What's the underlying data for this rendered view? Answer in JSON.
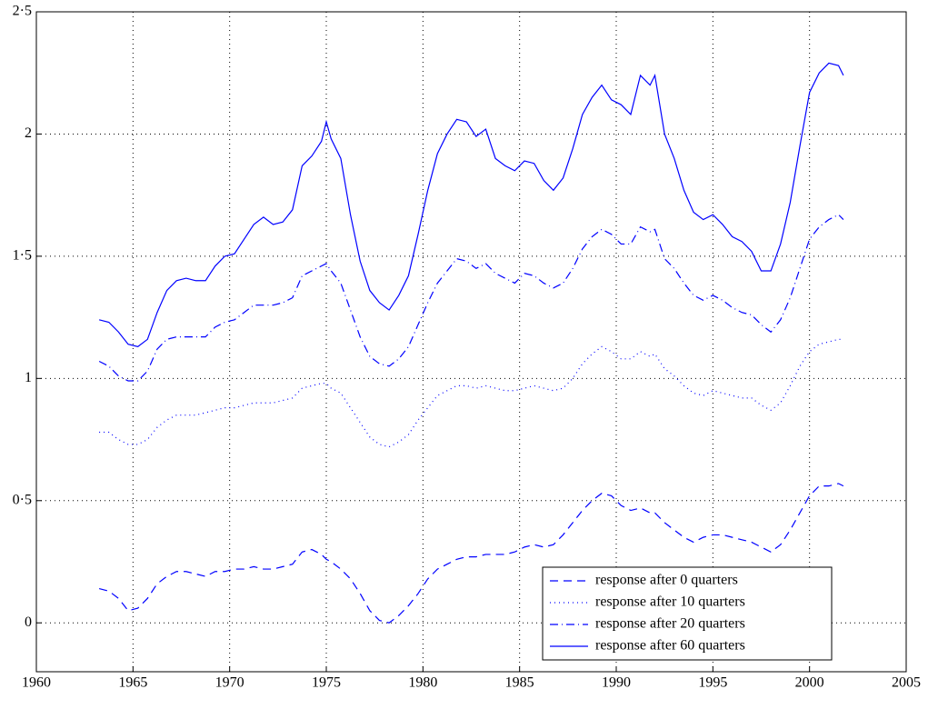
{
  "chart_data": {
    "type": "line",
    "x": [
      1963.25,
      1963.75,
      1964.25,
      1964.75,
      1965.25,
      1965.75,
      1966.25,
      1966.75,
      1967.25,
      1967.75,
      1968.25,
      1968.75,
      1969.25,
      1969.75,
      1970.25,
      1970.75,
      1971.25,
      1971.75,
      1972.25,
      1972.75,
      1973.25,
      1973.75,
      1974.25,
      1974.75,
      1975.0,
      1975.25,
      1975.75,
      1976.25,
      1976.75,
      1977.25,
      1977.75,
      1978.25,
      1978.75,
      1979.25,
      1979.75,
      1980.25,
      1980.75,
      1981.25,
      1981.75,
      1982.25,
      1982.75,
      1983.25,
      1983.75,
      1984.25,
      1984.75,
      1985.25,
      1985.75,
      1986.25,
      1986.75,
      1987.25,
      1987.75,
      1988.25,
      1988.75,
      1989.25,
      1989.75,
      1990.25,
      1990.75,
      1991.25,
      1991.75,
      1992.0,
      1992.5,
      1993.0,
      1993.5,
      1994.0,
      1994.5,
      1995.0,
      1995.5,
      1996.0,
      1996.5,
      1997.0,
      1997.5,
      1998.0,
      1998.5,
      1999.0,
      1999.5,
      2000.0,
      2000.5,
      2001.0,
      2001.5,
      2001.75
    ],
    "series": [
      {
        "name": "response after 0 quarters",
        "color": "#0000ff",
        "linestyle": "dashed",
        "values": [
          0.14,
          0.13,
          0.1,
          0.05,
          0.06,
          0.1,
          0.16,
          0.19,
          0.21,
          0.21,
          0.2,
          0.19,
          0.21,
          0.21,
          0.22,
          0.22,
          0.23,
          0.22,
          0.22,
          0.23,
          0.24,
          0.29,
          0.3,
          0.28,
          0.26,
          0.25,
          0.22,
          0.18,
          0.12,
          0.05,
          0.01,
          0.0,
          0.03,
          0.07,
          0.12,
          0.18,
          0.22,
          0.24,
          0.26,
          0.27,
          0.27,
          0.28,
          0.28,
          0.28,
          0.29,
          0.31,
          0.32,
          0.31,
          0.32,
          0.36,
          0.41,
          0.46,
          0.5,
          0.53,
          0.52,
          0.48,
          0.46,
          0.47,
          0.45,
          0.45,
          0.41,
          0.38,
          0.35,
          0.33,
          0.35,
          0.36,
          0.36,
          0.35,
          0.34,
          0.33,
          0.31,
          0.29,
          0.32,
          0.38,
          0.45,
          0.52,
          0.56,
          0.56,
          0.57,
          0.56
        ]
      },
      {
        "name": "response after 10 quarters",
        "color": "#0000ff",
        "linestyle": "dotted",
        "values": [
          0.78,
          0.78,
          0.75,
          0.73,
          0.73,
          0.75,
          0.8,
          0.83,
          0.85,
          0.85,
          0.85,
          0.86,
          0.87,
          0.88,
          0.88,
          0.89,
          0.9,
          0.9,
          0.9,
          0.91,
          0.92,
          0.96,
          0.97,
          0.98,
          0.98,
          0.96,
          0.94,
          0.88,
          0.82,
          0.76,
          0.73,
          0.72,
          0.74,
          0.77,
          0.83,
          0.88,
          0.93,
          0.95,
          0.97,
          0.97,
          0.96,
          0.97,
          0.96,
          0.95,
          0.95,
          0.96,
          0.97,
          0.96,
          0.95,
          0.96,
          1.0,
          1.06,
          1.1,
          1.13,
          1.11,
          1.08,
          1.08,
          1.11,
          1.09,
          1.1,
          1.04,
          1.01,
          0.97,
          0.94,
          0.93,
          0.95,
          0.94,
          0.93,
          0.92,
          0.92,
          0.89,
          0.87,
          0.9,
          0.97,
          1.05,
          1.11,
          1.14,
          1.15,
          1.16,
          1.16
        ]
      },
      {
        "name": "response after 20 quarters",
        "color": "#0000ff",
        "linestyle": "dashdot",
        "values": [
          1.07,
          1.05,
          1.01,
          0.99,
          0.99,
          1.03,
          1.12,
          1.16,
          1.17,
          1.17,
          1.17,
          1.17,
          1.21,
          1.23,
          1.24,
          1.27,
          1.3,
          1.3,
          1.3,
          1.31,
          1.33,
          1.42,
          1.44,
          1.46,
          1.47,
          1.44,
          1.39,
          1.28,
          1.17,
          1.09,
          1.06,
          1.05,
          1.08,
          1.13,
          1.22,
          1.31,
          1.39,
          1.44,
          1.49,
          1.48,
          1.45,
          1.47,
          1.43,
          1.41,
          1.39,
          1.43,
          1.42,
          1.39,
          1.37,
          1.39,
          1.45,
          1.53,
          1.58,
          1.61,
          1.59,
          1.55,
          1.55,
          1.62,
          1.6,
          1.61,
          1.49,
          1.45,
          1.39,
          1.34,
          1.32,
          1.34,
          1.32,
          1.29,
          1.27,
          1.26,
          1.22,
          1.19,
          1.24,
          1.33,
          1.45,
          1.57,
          1.62,
          1.65,
          1.67,
          1.65
        ]
      },
      {
        "name": "response after 60 quarters",
        "color": "#0000ff",
        "linestyle": "solid",
        "values": [
          1.24,
          1.23,
          1.19,
          1.14,
          1.13,
          1.16,
          1.27,
          1.36,
          1.4,
          1.41,
          1.4,
          1.4,
          1.46,
          1.5,
          1.51,
          1.57,
          1.63,
          1.66,
          1.63,
          1.64,
          1.69,
          1.87,
          1.91,
          1.97,
          2.05,
          1.98,
          1.9,
          1.67,
          1.48,
          1.36,
          1.31,
          1.28,
          1.34,
          1.42,
          1.59,
          1.77,
          1.92,
          2.0,
          2.06,
          2.05,
          1.99,
          2.02,
          1.9,
          1.87,
          1.85,
          1.89,
          1.88,
          1.81,
          1.77,
          1.82,
          1.94,
          2.08,
          2.15,
          2.2,
          2.14,
          2.12,
          2.08,
          2.24,
          2.2,
          2.24,
          2.0,
          1.9,
          1.77,
          1.68,
          1.65,
          1.67,
          1.63,
          1.58,
          1.56,
          1.52,
          1.44,
          1.44,
          1.55,
          1.72,
          1.95,
          2.17,
          2.25,
          2.29,
          2.28,
          2.24
        ]
      }
    ],
    "xlim": [
      1960,
      2005
    ],
    "xticks": [
      1960,
      1965,
      1970,
      1975,
      1980,
      1985,
      1990,
      1995,
      2000,
      2005
    ],
    "ylim": [
      -0.2,
      2.5
    ],
    "yticks": [
      0,
      {
        "value": 0.5,
        "label": "0·5"
      },
      1,
      {
        "value": 1.5,
        "label": "1·5"
      },
      2,
      {
        "value": 2.5,
        "label": "2·5"
      }
    ],
    "grid": true,
    "legend": "lower right"
  }
}
